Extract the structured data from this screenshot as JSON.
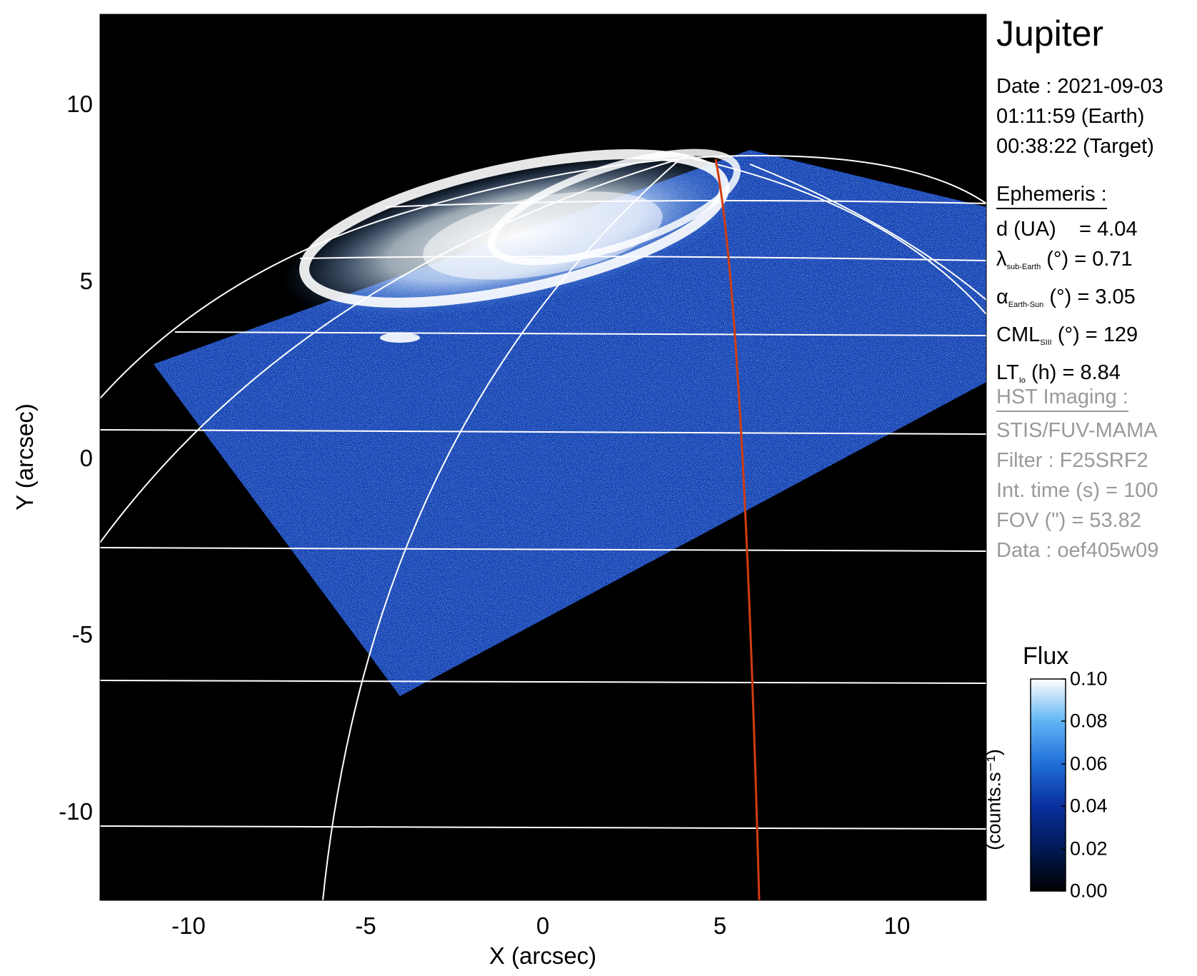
{
  "title": "Jupiter",
  "date_block": {
    "date": "Date : 2021-09-03",
    "earth_time": "01:11:59 (Earth)",
    "target_time": "00:38:22 (Target)"
  },
  "ephemeris": {
    "heading": "Ephemeris :",
    "d_label": "d (UA)",
    "d_value": "= 4.04",
    "lambda_symbol": "λ",
    "lambda_sub": "sub-Earth",
    "lambda_value": "(°) = 0.71",
    "alpha_symbol": "α",
    "alpha_sub": "Earth-Sun",
    "alpha_value": "(°) = 3.05",
    "cml_symbol": "CML",
    "cml_sub": "SIII",
    "cml_value": "(°) = 129",
    "lt_symbol": "LT",
    "lt_sub": "Io",
    "lt_value": "(h) = 8.84"
  },
  "hst": {
    "heading": "HST Imaging :",
    "instrument": "STIS/FUV-MAMA",
    "filter": "Filter : F25SRF2",
    "int_time": "Int. time (s) = 100",
    "fov": "FOV (\") = 53.82",
    "data": "Data : oef405w09"
  },
  "colorbar": {
    "title": "Flux",
    "unit": "(counts.s⁻¹)",
    "ticks": [
      "0.00",
      "0.02",
      "0.04",
      "0.06",
      "0.08",
      "0.10"
    ],
    "range": [
      0.0,
      0.1
    ]
  },
  "chart_data": {
    "type": "heatmap",
    "xlabel": "X (arcsec)",
    "ylabel": "Y (arcsec)",
    "xlim": [
      -12.5,
      12.5
    ],
    "ylim": [
      -12.5,
      12.5
    ],
    "xticks": [
      -10,
      -5,
      0,
      5,
      10
    ],
    "yticks": [
      -10,
      -5,
      0,
      5,
      10
    ],
    "xtick_labels": [
      "-10",
      "-5",
      "0",
      "5",
      "10"
    ],
    "ytick_labels": [
      "-10",
      "-5",
      "0",
      "5",
      "10"
    ]
  },
  "colors": {
    "background": "#000000",
    "red_line": "#d23c10",
    "grid": "#ffffff",
    "emission_low": "#0a2a8a",
    "emission_high": "#ffffff"
  }
}
